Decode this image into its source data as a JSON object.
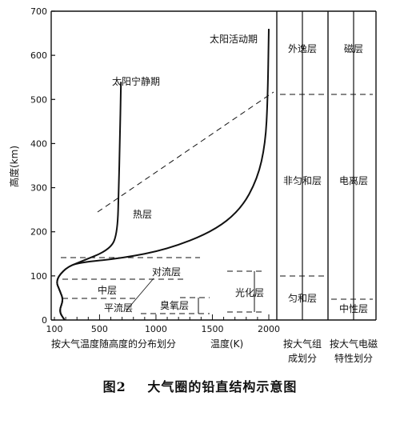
{
  "chart_data": {
    "type": "line",
    "ylabel": "高度(km)",
    "xlabel": "温度(K)",
    "xlim": [
      100,
      2000
    ],
    "ylim": [
      0,
      700
    ],
    "yticks": [
      "0",
      "100",
      "200",
      "300",
      "400",
      "500",
      "600",
      "700"
    ],
    "xticks": [
      "100",
      "500",
      "1000",
      "1500",
      "2000"
    ],
    "series": [
      {
        "name": "太阳活动期",
        "points": [
          [
            190,
            0
          ],
          [
            140,
            20
          ],
          [
            180,
            45
          ],
          [
            150,
            65
          ],
          [
            110,
            90
          ],
          [
            200,
            118
          ],
          [
            310,
            130
          ],
          [
            700,
            140
          ],
          [
            1100,
            160
          ],
          [
            1500,
            200
          ],
          [
            1750,
            250
          ],
          [
            1900,
            320
          ],
          [
            1970,
            400
          ],
          [
            1990,
            500
          ],
          [
            2000,
            660
          ]
        ]
      },
      {
        "name": "太阳宁静期",
        "points": [
          [
            190,
            0
          ],
          [
            140,
            20
          ],
          [
            180,
            45
          ],
          [
            150,
            65
          ],
          [
            110,
            90
          ],
          [
            200,
            118
          ],
          [
            310,
            130
          ],
          [
            600,
            160
          ],
          [
            660,
            200
          ],
          [
            670,
            300
          ],
          [
            680,
            400
          ],
          [
            690,
            540
          ]
        ]
      }
    ],
    "annotations": {
      "thermosphere": "热层",
      "troposphere": "对流层",
      "mesosphere": "中层",
      "stratosphere": "平流层",
      "ozone_layer": "臭氧层",
      "photochemical_layer": "光化层"
    }
  },
  "labels": {
    "col1_bottom": "按大气温度随高度的分布划分",
    "col2_bottom_line1": "按大气组",
    "col2_bottom_line2": "成划分",
    "col3_bottom_line1": "按大气电磁",
    "col3_bottom_line2": "特性划分",
    "exosphere": "外逸层",
    "heterosphere": "非匀和层",
    "homosphere": "匀和层",
    "magnetosphere": "磁层",
    "ionosphere": "电离层",
    "neutrosphere": "中性层"
  },
  "caption": {
    "number": "图2",
    "title": "大气圈的铅直结构示意图"
  }
}
